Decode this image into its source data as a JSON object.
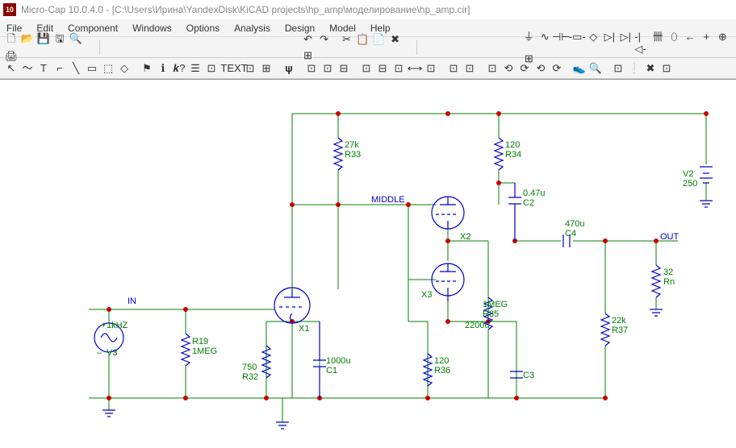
{
  "window": {
    "title": "Micro-Cap 10.0.4.0 - [C:\\Users\\Ирина\\YandexDisk\\KiCAD projects\\hp_amp\\моделирование\\hp_amp.cir]",
    "icon_text": "10"
  },
  "menu": [
    "File",
    "Edit",
    "Component",
    "Windows",
    "Options",
    "Analysis",
    "Design",
    "Model",
    "Help"
  ],
  "toolbar1": [
    "🗋",
    "📂",
    "💾",
    "🖫",
    "🔍",
    "🖨"
  ],
  "toolbar2": [
    "↶",
    "↷",
    "|",
    "✂",
    "📋",
    "📄",
    "✖",
    "⊞"
  ],
  "toolbar3": [
    "⏚",
    "∿",
    "⊣⊢",
    "-▭-",
    "◇",
    "▷|",
    "▷|",
    "-|◁-",
    "卌",
    "⬯",
    "←",
    "+",
    "⊕",
    "⊞"
  ],
  "toolbar4": [
    "↖",
    "〜",
    "T",
    "⌐",
    "╲",
    "▭",
    "⬚",
    "◇",
    "|",
    "⚑",
    "ℹ",
    "𝒌?",
    "☰",
    "⊡",
    "|",
    "TEXT",
    "⊡",
    "⊞",
    "|",
    "𝛙",
    "|",
    "⊡",
    "⊡",
    "⊟",
    "|",
    "⊡",
    "⊟",
    "⊡",
    "⟷",
    "⊡",
    "|",
    "⊡",
    "⊡",
    "|",
    "⊡",
    "⟲",
    "⟳",
    "⟲",
    "⟳",
    "|",
    "👟",
    "🔍",
    "|",
    "⊡",
    "❕",
    "✖",
    "⊡"
  ],
  "schematic": {
    "nets": {
      "in": "IN",
      "middle": "MIDDLE",
      "out": "OUT"
    },
    "components": {
      "V3": {
        "ref": "V3",
        "val": "1kHZ",
        "prefix": "+"
      },
      "R19": {
        "ref": "R19",
        "val": "1MEG"
      },
      "R32": {
        "ref": "R32",
        "val": "750"
      },
      "R33": {
        "ref": "R33",
        "val": "27k"
      },
      "R34": {
        "ref": "R34",
        "val": "120"
      },
      "R35": {
        "ref": "R35",
        "val": "1MEG"
      },
      "R36": {
        "ref": "R36",
        "val": "120"
      },
      "R37": {
        "ref": "R37",
        "val": "22k"
      },
      "Rn": {
        "ref": "Rn",
        "val": "32"
      },
      "C1": {
        "ref": "C1",
        "val": "1000u"
      },
      "C2": {
        "ref": "C2",
        "val": "0.47u"
      },
      "C3": {
        "ref": "C3",
        "val": "2200u"
      },
      "C4": {
        "ref": "C4",
        "val": "470u"
      },
      "X1": {
        "ref": "X1"
      },
      "X2": {
        "ref": "X2"
      },
      "X3": {
        "ref": "X3"
      },
      "V2": {
        "ref": "V2",
        "val": "250"
      }
    },
    "colors": {
      "wire": "#008000",
      "component": "#0000cc",
      "node": "#cc0000",
      "bg": "#ffffff"
    }
  }
}
